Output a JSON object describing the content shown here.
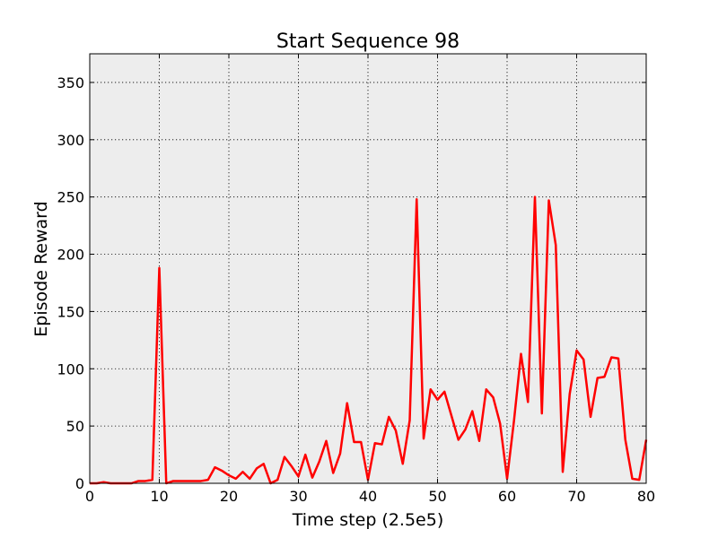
{
  "chart_data": {
    "type": "line",
    "title": "Start Sequence 98",
    "xlabel": "Time step (2.5e5)",
    "ylabel": "Episode Reward",
    "xlim": [
      0,
      80
    ],
    "ylim": [
      0,
      375
    ],
    "xticks": [
      0,
      10,
      20,
      30,
      40,
      50,
      60,
      70,
      80
    ],
    "yticks": [
      0,
      50,
      100,
      150,
      200,
      250,
      300,
      350
    ],
    "grid": true,
    "background": "#ededed",
    "series": [
      {
        "color": "#ff0000",
        "x": [
          0,
          1,
          2,
          3,
          4,
          5,
          6,
          7,
          8,
          9,
          10,
          11,
          12,
          13,
          14,
          15,
          16,
          17,
          18,
          19,
          20,
          21,
          22,
          23,
          24,
          25,
          26,
          27,
          28,
          29,
          30,
          31,
          32,
          33,
          34,
          35,
          36,
          37,
          38,
          39,
          40,
          41,
          42,
          43,
          44,
          45,
          46,
          47,
          48,
          49,
          50,
          51,
          52,
          53,
          54,
          55,
          56,
          57,
          58,
          59,
          60,
          61,
          62,
          63,
          64,
          65,
          66,
          67,
          68,
          69,
          70,
          71,
          72,
          73,
          74,
          75,
          76,
          77,
          78,
          79,
          80
        ],
        "values": [
          0,
          0,
          1,
          0,
          0,
          0,
          0,
          2,
          2,
          3,
          188,
          0,
          2,
          2,
          2,
          2,
          2,
          3,
          14,
          11,
          7,
          4,
          10,
          4,
          13,
          17,
          0,
          3,
          23,
          15,
          6,
          25,
          5,
          19,
          37,
          9,
          26,
          70,
          36,
          36,
          3,
          35,
          34,
          58,
          46,
          17,
          55,
          248,
          39,
          82,
          73,
          80,
          59,
          38,
          47,
          63,
          37,
          82,
          75,
          52,
          4,
          55,
          113,
          71,
          250,
          61,
          247,
          208,
          10,
          78,
          116,
          108,
          58,
          92,
          93,
          110,
          109,
          38,
          4,
          3,
          38
        ]
      }
    ]
  }
}
